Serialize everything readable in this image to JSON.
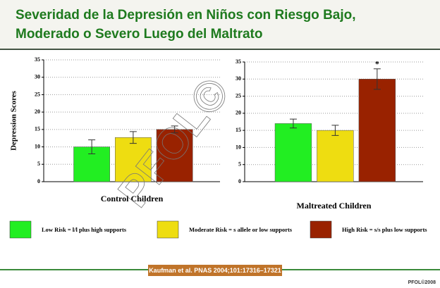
{
  "title": "Severidad de la Depresión en Niños con Riesgo Bajo, Moderado o Severo Luego del Maltrato",
  "legend": [
    {
      "name": "Low Risk = l/l plus high supports",
      "color": "#22ee22"
    },
    {
      "name": "Moderate Risk = s allele or low supports",
      "color": "#eedd11"
    },
    {
      "name": "High Risk = s/s plus low supports",
      "color": "#992200"
    }
  ],
  "chart_data": [
    {
      "type": "bar",
      "ylabel": "Depression Scores",
      "xlabel": "Control Children",
      "values": [
        10,
        12.7,
        15
      ],
      "errors": [
        2,
        1.7,
        1
      ],
      "ylim": [
        0,
        35
      ],
      "yticks": [
        0,
        5,
        10,
        15,
        20,
        25,
        30,
        35
      ],
      "grid": true
    },
    {
      "type": "bar",
      "xlabel": "Maltreated Children",
      "values": [
        17,
        15,
        30
      ],
      "errors": [
        1.3,
        1.5,
        3
      ],
      "annotation": "*",
      "ylim": [
        0,
        35
      ],
      "yticks": [
        0,
        5,
        10,
        15,
        20,
        25,
        30,
        35
      ],
      "grid": true
    }
  ],
  "citation": "Kaufman et  al. PNAS 2004;101:17316–17321",
  "watermark": "PFOL©",
  "footer": "PFOL©2008"
}
